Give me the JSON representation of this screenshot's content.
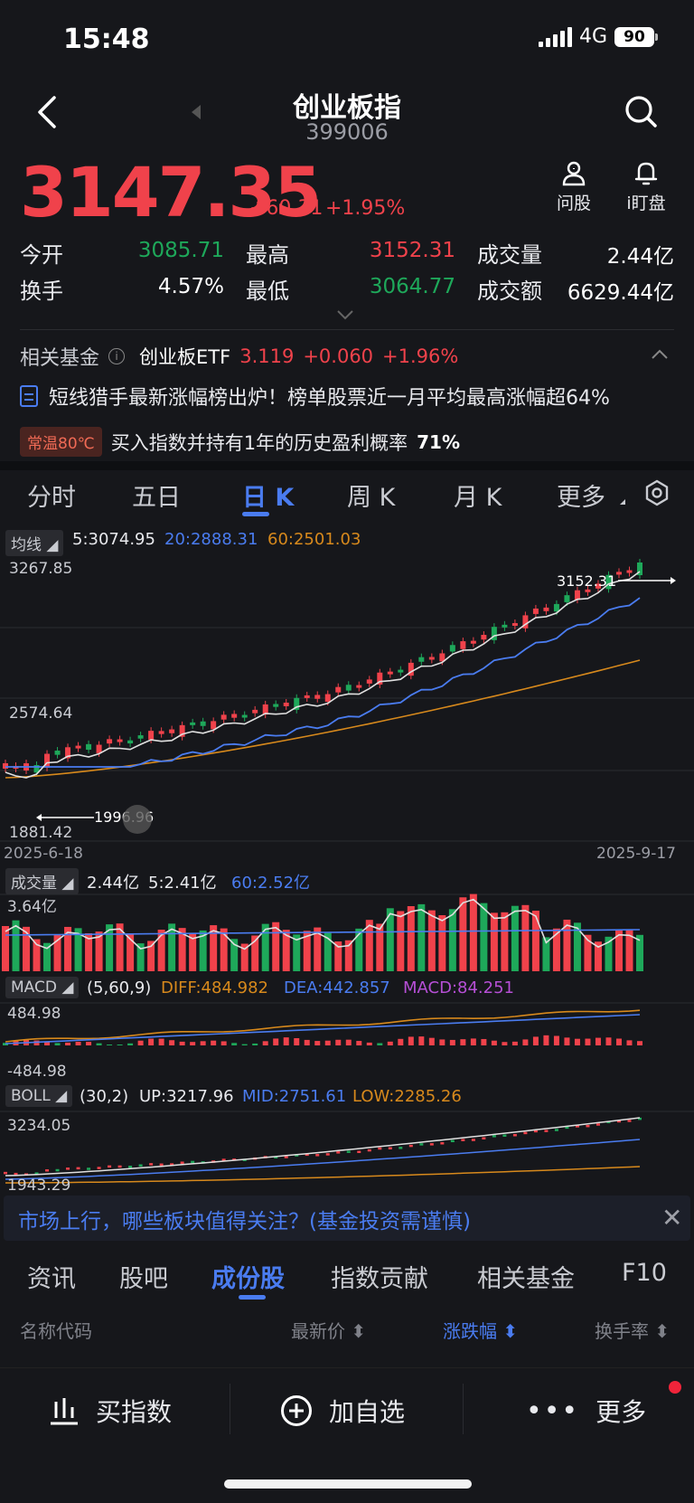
{
  "status": {
    "time": "15:48",
    "network": "4G",
    "battery": "90"
  },
  "header": {
    "title": "创业板指",
    "code": "399006"
  },
  "quote": {
    "price": "3147.35",
    "change": "+60.31",
    "change_pct": "+1.95%"
  },
  "tools": [
    {
      "label": "问股",
      "icon": "person-icon"
    },
    {
      "label": "i盯盘",
      "icon": "bell-icon"
    }
  ],
  "stats": {
    "open_label": "今开",
    "open": "3085.71",
    "high_label": "最高",
    "high": "3152.31",
    "volume_label": "成交量",
    "volume": "2.44亿",
    "turnover_label": "换手",
    "turnover": "4.57%",
    "low_label": "最低",
    "low": "3064.77",
    "amount_label": "成交额",
    "amount": "6629.44亿"
  },
  "fund": {
    "label": "相关基金",
    "name": "创业板ETF",
    "price": "3.119",
    "change": "+0.060",
    "pct": "+1.96%"
  },
  "news": {
    "text": "短线猎手最新涨幅榜出炉！榜单股票近一月平均最高涨幅超64%"
  },
  "temp": {
    "badge": "常温80℃",
    "text": "买入指数并持有1年的历史盈利概率",
    "value": "71%"
  },
  "chart_tabs": [
    "分时",
    "五日",
    "日 K",
    "周 K",
    "月 K",
    "更多"
  ],
  "active_chart_tab": "日 K",
  "ma": {
    "btn": "均线",
    "ma5": "5:3074.95",
    "ma20": "20:2888.31",
    "ma60": "60:2501.03"
  },
  "colors": {
    "up": "#f0424b",
    "down": "#1ea85a",
    "accent": "#4a7cf0",
    "ma60": "#d7891c",
    "macd": "#b64fd6"
  },
  "kline_axis": {
    "top": "3267.85",
    "mid": "2574.64",
    "bottom": "1881.42",
    "max_mark": "3152.31",
    "min_mark": "1996.96",
    "start_date": "2025-6-18",
    "end_date": "2025-9-17"
  },
  "volume": {
    "btn": "成交量",
    "vol": "2.44亿",
    "ma5": "5:2.41亿",
    "ma60": "60:2.52亿",
    "axis_top": "3.64亿"
  },
  "macd": {
    "btn": "MACD",
    "params": "(5,60,9)",
    "diff": "DIFF:484.982",
    "dea": "DEA:442.857",
    "macd": "MACD:84.251",
    "axis_top": "484.98",
    "axis_bottom": "-484.98"
  },
  "boll": {
    "btn": "BOLL",
    "params": "(30,2)",
    "up": "UP:3217.96",
    "mid": "MID:2751.61",
    "low": "LOW:2285.26",
    "axis_top": "3234.05",
    "axis_bottom": "1943.29"
  },
  "banner": {
    "text": "市场上行，哪些板块值得关注？(基金投资需谨慎)"
  },
  "bottom_tabs": [
    "资讯",
    "股吧",
    "成份股",
    "指数贡献",
    "相关基金",
    "F10"
  ],
  "active_bottom_tab": "成份股",
  "columns": {
    "name": "名称代码",
    "price": "最新价",
    "pct": "涨跌幅",
    "turnover": "换手率"
  },
  "actions": {
    "buy": "买指数",
    "add": "加自选",
    "more": "更多"
  }
}
